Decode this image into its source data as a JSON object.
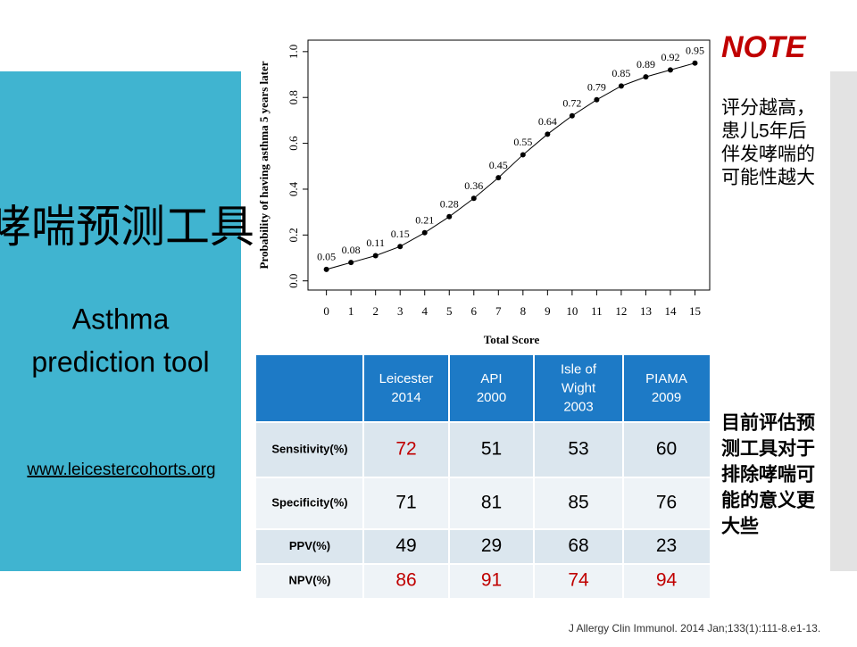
{
  "slide": {
    "title_cn": "哮喘预测工具",
    "title_en": [
      "Asthma",
      "prediction tool"
    ],
    "link": "www.leicestercohorts.org",
    "note_title": "NOTE",
    "note_lines": [
      "评分越高，",
      "患儿5年后",
      "伴发哮喘的",
      "可能性越大"
    ],
    "note2_lines": [
      "目前评估预",
      "测工具对于",
      "排除哮喘可",
      "能的意义更",
      "大些"
    ],
    "citation": "J Allergy Clin Immunol. 2014 Jan;133(1):111-8.e1-13."
  },
  "chart_data": {
    "type": "line",
    "x_label": "Total Score",
    "y_label": "Probability of having asthma 5 years later",
    "x": [
      0,
      1,
      2,
      3,
      4,
      5,
      6,
      7,
      8,
      9,
      10,
      11,
      12,
      13,
      14,
      15
    ],
    "values": [
      0.05,
      0.08,
      0.11,
      0.15,
      0.21,
      0.28,
      0.36,
      0.45,
      0.55,
      0.64,
      0.72,
      0.79,
      0.85,
      0.89,
      0.92,
      0.95
    ],
    "color": "#000000",
    "xlim": [
      -0.75,
      15.6
    ],
    "ylim": [
      -0.04,
      1.05
    ],
    "xticks": [
      0,
      1,
      2,
      3,
      4,
      5,
      6,
      7,
      8,
      9,
      10,
      11,
      12,
      13,
      14,
      15
    ],
    "yticks": [
      {
        "value": 0,
        "label": "0.0"
      },
      0.2,
      0.4,
      0.6,
      0.8,
      {
        "value": 1,
        "label": "1.0"
      }
    ]
  },
  "table": {
    "header": [
      [
        "Leicester",
        "2014"
      ],
      [
        "API",
        "2000"
      ],
      [
        "Isle of",
        "Wight",
        "2003"
      ],
      [
        "PIAMA",
        "2009"
      ]
    ],
    "rows": [
      {
        "label": "Sensitivity(%)",
        "cells": [
          72,
          51,
          53,
          60
        ],
        "colors": [
          "#c00000",
          "#000000",
          "#000000",
          "#000000"
        ]
      },
      {
        "label": "Specificity(%)",
        "cells": [
          71,
          81,
          85,
          76
        ],
        "colors": [
          "#000000",
          "#000000",
          "#000000",
          "#000000"
        ]
      },
      {
        "label": "PPV(%)",
        "cells": [
          49,
          29,
          68,
          23
        ],
        "colors": [
          "#000000",
          "#000000",
          "#000000",
          "#000000"
        ]
      },
      {
        "label": "NPV(%)",
        "cells": [
          86,
          91,
          74,
          94
        ],
        "colors": [
          "#c00000",
          "#c00000",
          "#c00000",
          "#c00000"
        ]
      }
    ]
  }
}
